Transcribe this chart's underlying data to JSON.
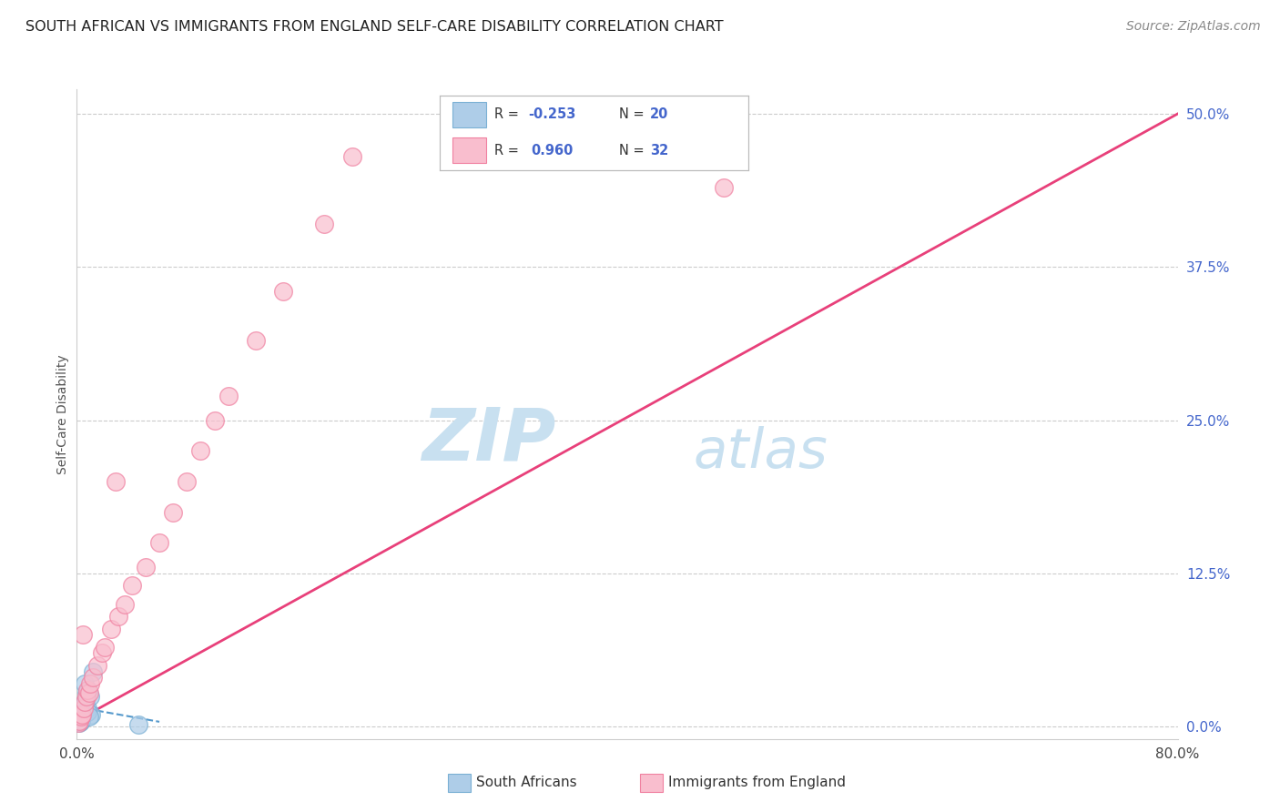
{
  "title": "SOUTH AFRICAN VS IMMIGRANTS FROM ENGLAND SELF-CARE DISABILITY CORRELATION CHART",
  "source": "Source: ZipAtlas.com",
  "ylabel": "Self-Care Disability",
  "ytick_labels": [
    "0.0%",
    "12.5%",
    "25.0%",
    "37.5%",
    "50.0%"
  ],
  "ytick_values": [
    0.0,
    12.5,
    25.0,
    37.5,
    50.0
  ],
  "xlim": [
    0.0,
    80.0
  ],
  "ylim": [
    -1.0,
    52.0
  ],
  "legend_r1_prefix": "R = ",
  "legend_r1_val": "-0.253",
  "legend_n1": "N = 20",
  "legend_r2_prefix": "R =  ",
  "legend_r2_val": "0.960",
  "legend_n2": "N = 32",
  "blue_fill": "#aecde8",
  "blue_edge": "#7ab0d4",
  "pink_fill": "#f9bece",
  "pink_edge": "#f080a0",
  "trendline_blue_color": "#5599cc",
  "trendline_pink_color": "#e8407a",
  "watermark_zip": "ZIP",
  "watermark_atlas": "atlas",
  "watermark_color": "#c8e0f0",
  "south_african_x": [
    0.15,
    0.25,
    0.35,
    0.45,
    0.55,
    0.65,
    0.75,
    0.85,
    0.95,
    1.05,
    0.2,
    0.3,
    0.4,
    0.5,
    0.6,
    0.7,
    0.8,
    0.9,
    1.2,
    4.5
  ],
  "south_african_y": [
    0.6,
    0.4,
    0.8,
    1.2,
    1.8,
    2.2,
    1.5,
    3.0,
    2.5,
    1.0,
    0.3,
    0.5,
    1.0,
    1.8,
    3.5,
    2.8,
    1.2,
    0.8,
    4.5,
    0.2
  ],
  "england_x": [
    0.1,
    0.2,
    0.3,
    0.4,
    0.5,
    0.6,
    0.7,
    0.8,
    0.9,
    1.0,
    1.2,
    1.5,
    1.8,
    2.0,
    2.5,
    3.0,
    3.5,
    4.0,
    5.0,
    6.0,
    7.0,
    8.0,
    9.0,
    10.0,
    11.0,
    13.0,
    15.0,
    18.0,
    20.0,
    47.0,
    2.8,
    0.45
  ],
  "england_y": [
    0.3,
    0.5,
    0.8,
    1.0,
    1.5,
    2.0,
    2.5,
    3.0,
    2.8,
    3.5,
    4.0,
    5.0,
    6.0,
    6.5,
    8.0,
    9.0,
    10.0,
    11.5,
    13.0,
    15.0,
    17.5,
    20.0,
    22.5,
    25.0,
    27.0,
    31.5,
    35.5,
    41.0,
    46.5,
    44.0,
    20.0,
    7.5
  ],
  "blue_trendline_x": [
    0.0,
    6.0
  ],
  "blue_trendline_y": [
    1.6,
    0.4
  ],
  "pink_trendline_x": [
    0.0,
    80.0
  ],
  "pink_trendline_y": [
    0.5,
    50.0
  ]
}
